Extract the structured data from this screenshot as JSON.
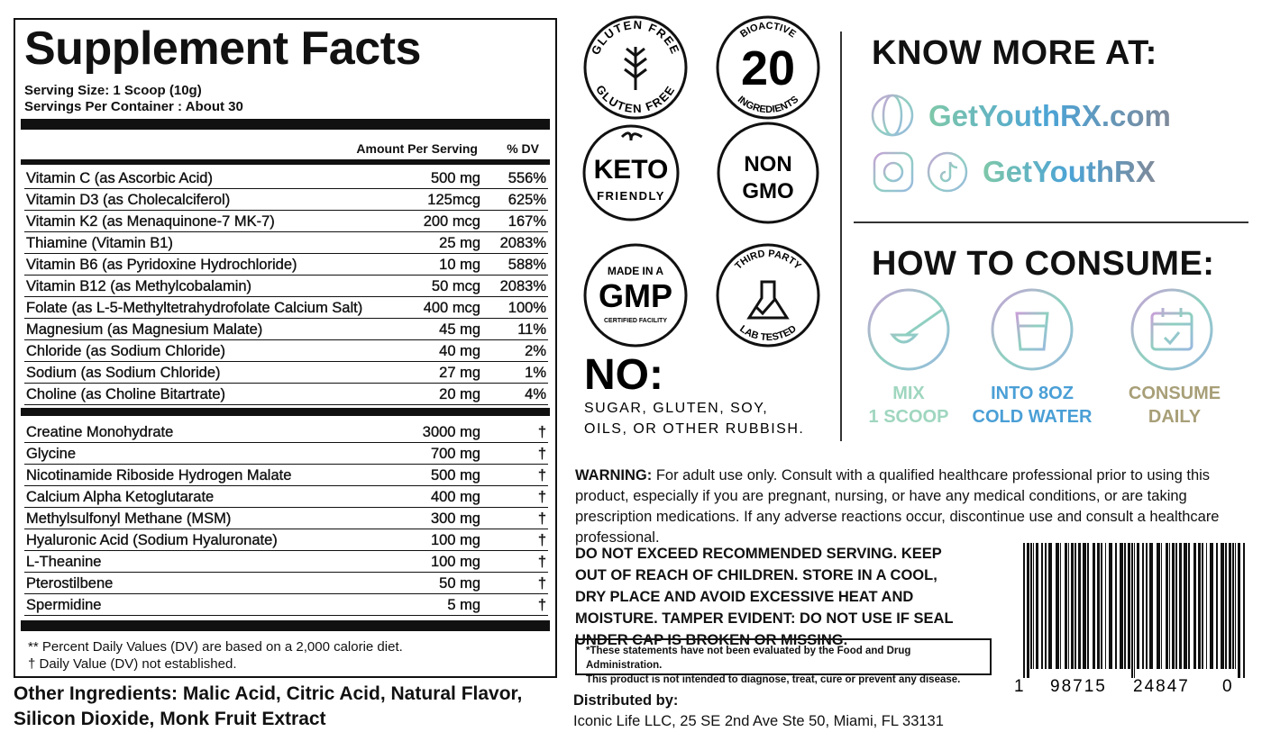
{
  "facts": {
    "title": "Supplement Facts",
    "serving_size": "Serving Size: 1 Scoop (10g)",
    "servings_per_container": "Servings Per Container : About 30",
    "header": {
      "amount": "Amount Per Serving",
      "dv": "% DV"
    },
    "vitamins": [
      {
        "name": "Vitamin C (as Ascorbic Acid)",
        "amount": "500 mg",
        "dv": "556%"
      },
      {
        "name": "Vitamin D3 (as Cholecalciferol)",
        "amount": "125mcg",
        "dv": "625%"
      },
      {
        "name": "Vitamin K2 (as Menaquinone-7 MK-7)",
        "amount": "200 mcg",
        "dv": "167%"
      },
      {
        "name": "Thiamine (Vitamin B1)",
        "amount": "25 mg",
        "dv": "2083%"
      },
      {
        "name": "Vitamin B6 (as Pyridoxine Hydrochloride)",
        "amount": "10 mg",
        "dv": "588%"
      },
      {
        "name": "Vitamin B12 (as Methylcobalamin)",
        "amount": "50 mcg",
        "dv": "2083%"
      },
      {
        "name": "Folate (as L-5-Methyltetrahydrofolate Calcium Salt)",
        "amount": "400 mcg",
        "dv": "100%"
      },
      {
        "name": "Magnesium (as Magnesium Malate)",
        "amount": "45 mg",
        "dv": "11%"
      },
      {
        "name": "Chloride (as Sodium Chloride)",
        "amount": "40 mg",
        "dv": "2%"
      },
      {
        "name": "Sodium (as Sodium Chloride)",
        "amount": "27 mg",
        "dv": "1%"
      },
      {
        "name": "Choline (as Choline Bitartrate)",
        "amount": "20 mg",
        "dv": "4%"
      }
    ],
    "other_nutrients": [
      {
        "name": "Creatine Monohydrate",
        "amount": "3000 mg",
        "dv": "†"
      },
      {
        "name": "Glycine",
        "amount": "700 mg",
        "dv": "†"
      },
      {
        "name": "Nicotinamide Riboside Hydrogen Malate",
        "amount": "500 mg",
        "dv": "†"
      },
      {
        "name": "Calcium Alpha Ketoglutarate",
        "amount": "400 mg",
        "dv": "†"
      },
      {
        "name": "Methylsulfonyl Methane (MSM)",
        "amount": "300 mg",
        "dv": "†"
      },
      {
        "name": "Hyaluronic Acid (Sodium Hyaluronate)",
        "amount": "100 mg",
        "dv": "†"
      },
      {
        "name": "L-Theanine",
        "amount": "100 mg",
        "dv": "†"
      },
      {
        "name": "Pterostilbene",
        "amount": "50 mg",
        "dv": "†"
      },
      {
        "name": "Spermidine",
        "amount": "5 mg",
        "dv": "†"
      }
    ],
    "footnotes": [
      "** Percent Daily Values (DV) are based on a 2,000 calorie diet.",
      "† Daily Value (DV) not established."
    ]
  },
  "other_ingredients": "Other Ingredients: Malic Acid, Citric Acid, Natural Flavor, Silicon Dioxide, Monk Fruit Extract",
  "badges": {
    "gluten_free": {
      "top": "GLUTEN FREE",
      "bottom": "GLUTEN FREE"
    },
    "bioactive": {
      "top": "BIOACTIVE",
      "number": "20",
      "bottom": "INGREDIENTS"
    },
    "keto": [
      "KETO",
      "FRIENDLY"
    ],
    "non_gmo": [
      "NON",
      "GMO"
    ],
    "gmp": [
      "MADE IN A",
      "GMP",
      "CERTIFIED FACILITY"
    ],
    "third_party": {
      "top": "THIRD PARTY",
      "bottom": "LAB TESTED"
    }
  },
  "no": {
    "title": "NO:",
    "lines": [
      "SUGAR, GLUTEN, SOY,",
      "OILS, OR OTHER RUBBISH."
    ]
  },
  "know_more": {
    "title": "KNOW MORE AT:",
    "website": "GetYouthRX.com",
    "social": "GetYouthRX"
  },
  "how_to": {
    "title": "HOW TO CONSUME:",
    "steps": [
      [
        "MIX",
        "1 SCOOP"
      ],
      [
        "INTO 8OZ",
        "COLD WATER"
      ],
      [
        "CONSUME",
        "DAILY"
      ]
    ]
  },
  "warning": {
    "label": "WARNING:",
    "text": " For adult use only. Consult with a qualified healthcare professional prior to using this product, especially if you are pregnant, nursing, or have any medical conditions, or are taking prescription medications. If any adverse reactions occur, discontinue use and consult a healthcare professional."
  },
  "notice": "DO NOT EXCEED RECOMMENDED SERVING. KEEP OUT OF REACH OF CHILDREN. STORE IN A COOL, DRY PLACE AND AVOID EXCESSIVE HEAT AND MOISTURE. TAMPER EVIDENT: DO NOT USE IF SEAL UNDER CAP IS BROKEN OR MISSING.",
  "disclaimer": [
    "*These statements have not been evaluated by the Food and Drug Administration.",
    "This product is not intended to diagnose, treat, cure or prevent any disease."
  ],
  "barcode": [
    "1",
    "98715",
    "24847",
    "0"
  ],
  "distributor": {
    "label": "Distributed by:",
    "address": "Iconic Life LLC, 25 SE 2nd Ave Ste 50, Miami, FL 33131"
  }
}
